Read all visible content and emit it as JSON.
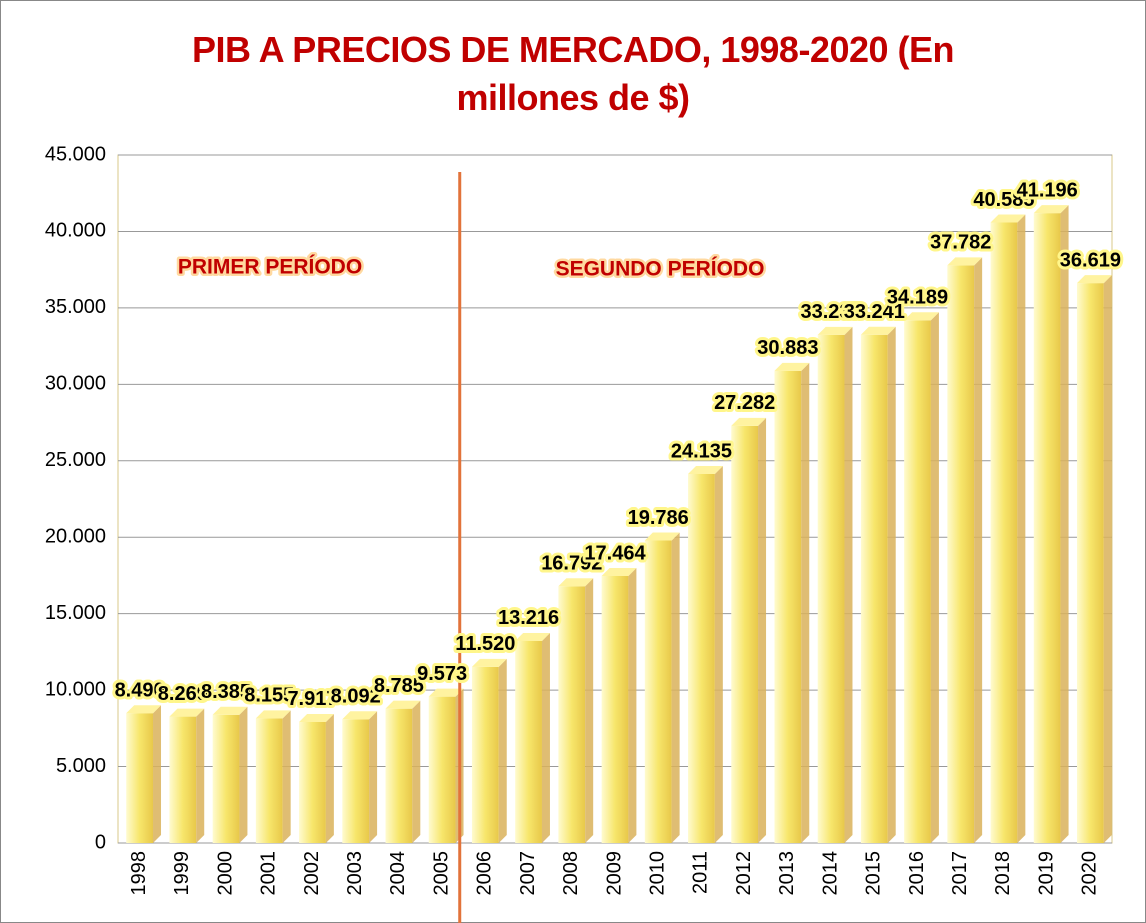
{
  "chart_data": {
    "type": "bar",
    "title": "PIB A PRECIOS DE MERCADO, 1998-2020 (En millones de $)",
    "categories": [
      "1998",
      "1999",
      "2000",
      "2001",
      "2002",
      "2003",
      "2004",
      "2005",
      "2006",
      "2007",
      "2008",
      "2009",
      "2010",
      "2011",
      "2012",
      "2013",
      "2014",
      "2015",
      "2016",
      "2017",
      "2018",
      "2019",
      "2020"
    ],
    "values": [
      8490,
      8269,
      8385,
      8155,
      7917,
      8092,
      8785,
      9573,
      11520,
      13216,
      16792,
      17464,
      19786,
      24135,
      27282,
      30883,
      33237,
      33241,
      34189,
      37782,
      40585,
      41196,
      36619
    ],
    "value_labels": [
      "8.490",
      "8.269",
      "8.385",
      "8.155",
      "7.917",
      "8.092",
      "8.785",
      "9.573",
      "11.520",
      "13.216",
      "16.792",
      "17.464",
      "19.786",
      "24.135",
      "27.282",
      "30.883",
      "33.237",
      "33.241",
      "34.189",
      "37.782",
      "40.585",
      "41.196",
      "36.619"
    ],
    "color": "#f7e66b",
    "ylim": [
      0,
      45000
    ],
    "yticks": [
      0,
      {
        "value": 5000,
        "label": "5.000"
      },
      {
        "value": 10000,
        "label": "10.000"
      },
      {
        "value": 15000,
        "label": "15.000"
      },
      {
        "value": 20000,
        "label": "20.000"
      },
      {
        "value": 25000,
        "label": "25.000"
      },
      {
        "value": 30000,
        "label": "30.000"
      },
      {
        "value": 35000,
        "label": "35.000"
      },
      {
        "value": 40000,
        "label": "40.000"
      },
      {
        "value": 45000,
        "label": "45.000"
      }
    ],
    "grid": true,
    "annotations": [
      "PRIMER PERÍODO",
      "SEGUNDO PERÍODO"
    ]
  }
}
